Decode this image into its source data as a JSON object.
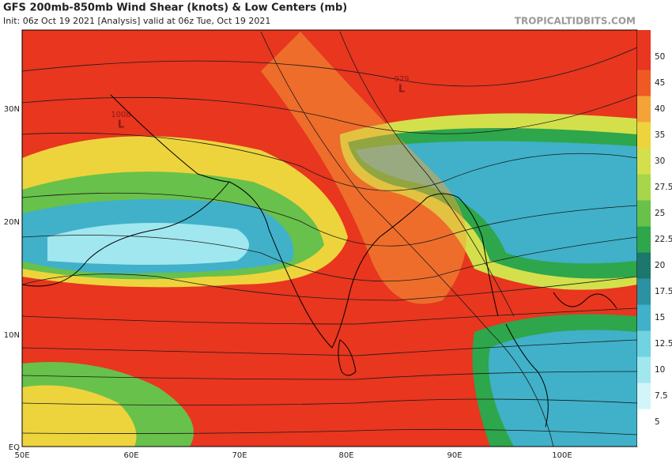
{
  "header": {
    "title": "GFS 200mb-850mb Wind Shear (knots) & Low Centers (mb)",
    "init": "Init: 06z Oct 19 2021  [Analysis]  valid at 06z Tue, Oct 19 2021",
    "site": "TROPICALTIDBITS.COM"
  },
  "lat_labels": [
    "30N",
    "20N",
    "10N",
    "EQ"
  ],
  "lon_labels": [
    "50E",
    "60E",
    "70E",
    "80E",
    "90E",
    "100E"
  ],
  "colorbar": [
    {
      "label": 50,
      "color": "#e8361f"
    },
    {
      "label": 45,
      "color": "#ef5a24"
    },
    {
      "label": 40,
      "color": "#f4a337"
    },
    {
      "label": 35,
      "color": "#eed43c"
    },
    {
      "label": 30,
      "color": "#d3e04b"
    },
    {
      "label": 27.5,
      "color": "#a7d64a"
    },
    {
      "label": 25,
      "color": "#68c14a"
    },
    {
      "label": 22.5,
      "color": "#2ea64b"
    },
    {
      "label": 20,
      "color": "#1c776f"
    },
    {
      "label": 17.5,
      "color": "#2b91a3"
    },
    {
      "label": 15,
      "color": "#40b1c9"
    },
    {
      "label": 12.5,
      "color": "#6fd3e1"
    },
    {
      "label": 10,
      "color": "#a1e7ef"
    },
    {
      "label": 7.5,
      "color": "#d1f5f8"
    },
    {
      "label": 5,
      "color": "#ffffff"
    }
  ],
  "lows": [
    {
      "pressure": 1008,
      "symbol": "L"
    },
    {
      "pressure": 979,
      "symbol": "L"
    }
  ]
}
